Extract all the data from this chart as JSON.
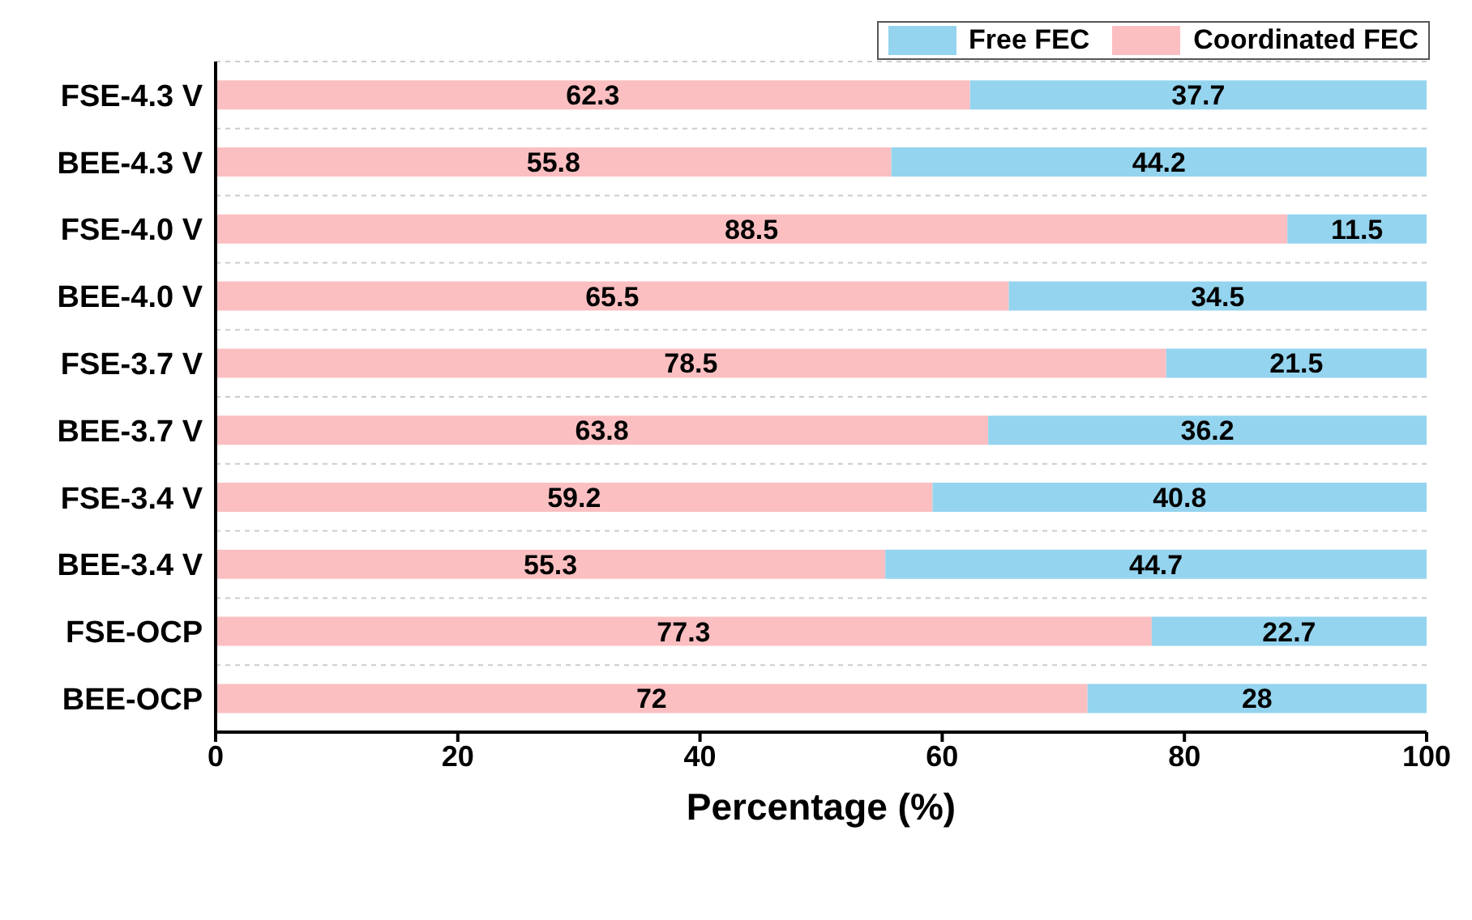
{
  "chart_data": {
    "type": "bar",
    "orientation": "horizontal",
    "stacked": true,
    "xlabel": "Percentage (%)",
    "categories": [
      "FSE-4.3 V",
      "BEE-4.3 V",
      "FSE-4.0 V",
      "BEE-4.0 V",
      "FSE-3.7 V",
      "BEE-3.7 V",
      "FSE-3.4 V",
      "BEE-3.4 V",
      "FSE-OCP",
      "BEE-OCP"
    ],
    "series": [
      {
        "name": "Coordinated FEC",
        "color": "#fbbfc1",
        "values": [
          62.3,
          55.8,
          88.5,
          65.5,
          78.5,
          63.8,
          59.2,
          55.3,
          77.3,
          72
        ]
      },
      {
        "name": "Free FEC",
        "color": "#94d4ef",
        "values": [
          37.7,
          44.2,
          11.5,
          34.5,
          21.5,
          36.2,
          40.8,
          44.7,
          22.7,
          28
        ]
      }
    ],
    "xlim": [
      0,
      100
    ],
    "xticks": [
      0,
      20,
      40,
      60,
      80,
      100
    ],
    "data_labels": true,
    "grid": "y",
    "legend": "top right"
  }
}
